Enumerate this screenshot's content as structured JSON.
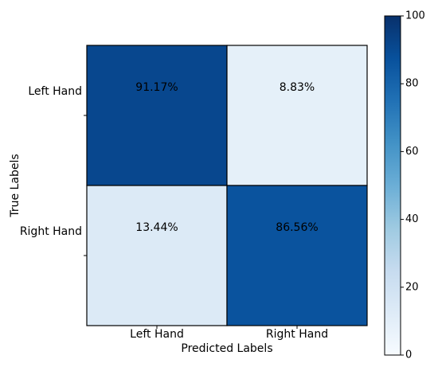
{
  "chart_data": {
    "type": "heatmap",
    "title": "",
    "xlabel": "Predicted Labels",
    "ylabel": "True Labels",
    "x_categories": [
      "Left Hand",
      "Right Hand"
    ],
    "y_categories": [
      "Left Hand",
      "Right Hand"
    ],
    "values": [
      [
        91.17,
        8.83
      ],
      [
        13.44,
        86.56
      ]
    ],
    "cell_labels": [
      [
        "91.17%",
        "8.83%"
      ],
      [
        "13.44%",
        "86.56%"
      ]
    ],
    "colormap": "Blues",
    "vmin": 0,
    "vmax": 100,
    "colorbar_ticks": [
      0,
      20,
      40,
      60,
      80,
      100
    ],
    "colorbar_tick_labels": [
      "0",
      "20",
      "40",
      "60",
      "80",
      "100"
    ],
    "grid": false,
    "colors": {
      "low": "#f7fbff",
      "high": "#08306b",
      "cell_border": "#000000"
    }
  }
}
